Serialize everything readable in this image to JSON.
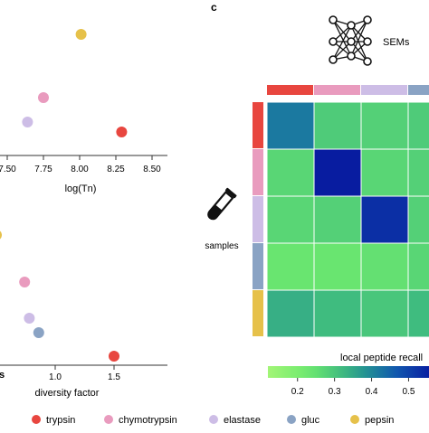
{
  "panel_c_label": "c",
  "sems_label": "SEMs",
  "samples_label": "samples",
  "legend": [
    {
      "name": "trypsin",
      "color": "#e8463f"
    },
    {
      "name": "chymotrypsin",
      "color": "#e99bbe"
    },
    {
      "name": "elastase",
      "color": "#cdbde6"
    },
    {
      "name": "gluc",
      "color": "#8aa3c4"
    },
    {
      "name": "pepsin",
      "color": "#e6c14a"
    }
  ],
  "chart_data": [
    {
      "type": "scatter",
      "xlabel": "log(Tn)",
      "xticks": [
        "7.50",
        "7.75",
        "8.00",
        "8.25",
        "8.50"
      ],
      "xlim": [
        7.45,
        8.5
      ],
      "points": [
        {
          "series": "pepsin",
          "x": 8.01
        },
        {
          "series": "chymotrypsin",
          "x": 7.75
        },
        {
          "series": "elastase",
          "x": 7.64
        },
        {
          "series": "trypsin",
          "x": 8.29
        }
      ]
    },
    {
      "type": "scatter",
      "xlabel": "diversity factor",
      "xticks": [
        "1.0",
        "1.5"
      ],
      "xlim": [
        0.5,
        1.75
      ],
      "points": [
        {
          "series": "pepsin",
          "x": 0.5
        },
        {
          "series": "chymotrypsin",
          "x": 0.74
        },
        {
          "series": "elastase",
          "x": 0.78
        },
        {
          "series": "gluc",
          "x": 0.86
        },
        {
          "series": "trypsin",
          "x": 1.5
        }
      ]
    },
    {
      "type": "heatmap",
      "rows": [
        "trypsin",
        "chymotrypsin",
        "elastase",
        "gluc",
        "pepsin"
      ],
      "cols": [
        "trypsin",
        "chymotrypsin",
        "elastase",
        "gluc"
      ],
      "values": [
        [
          0.42,
          0.29,
          0.28,
          0.29
        ],
        [
          0.27,
          0.56,
          0.27,
          0.28
        ],
        [
          0.27,
          0.28,
          0.53,
          0.28
        ],
        [
          0.24,
          0.24,
          0.25,
          0.27
        ],
        [
          0.34,
          0.32,
          0.3,
          0.32
        ]
      ],
      "colorbar": {
        "label": "local peptide recall",
        "ticks": [
          "0.2",
          "0.3",
          "0.4",
          "0.5"
        ],
        "range": [
          0.12,
          0.56
        ]
      }
    }
  ]
}
